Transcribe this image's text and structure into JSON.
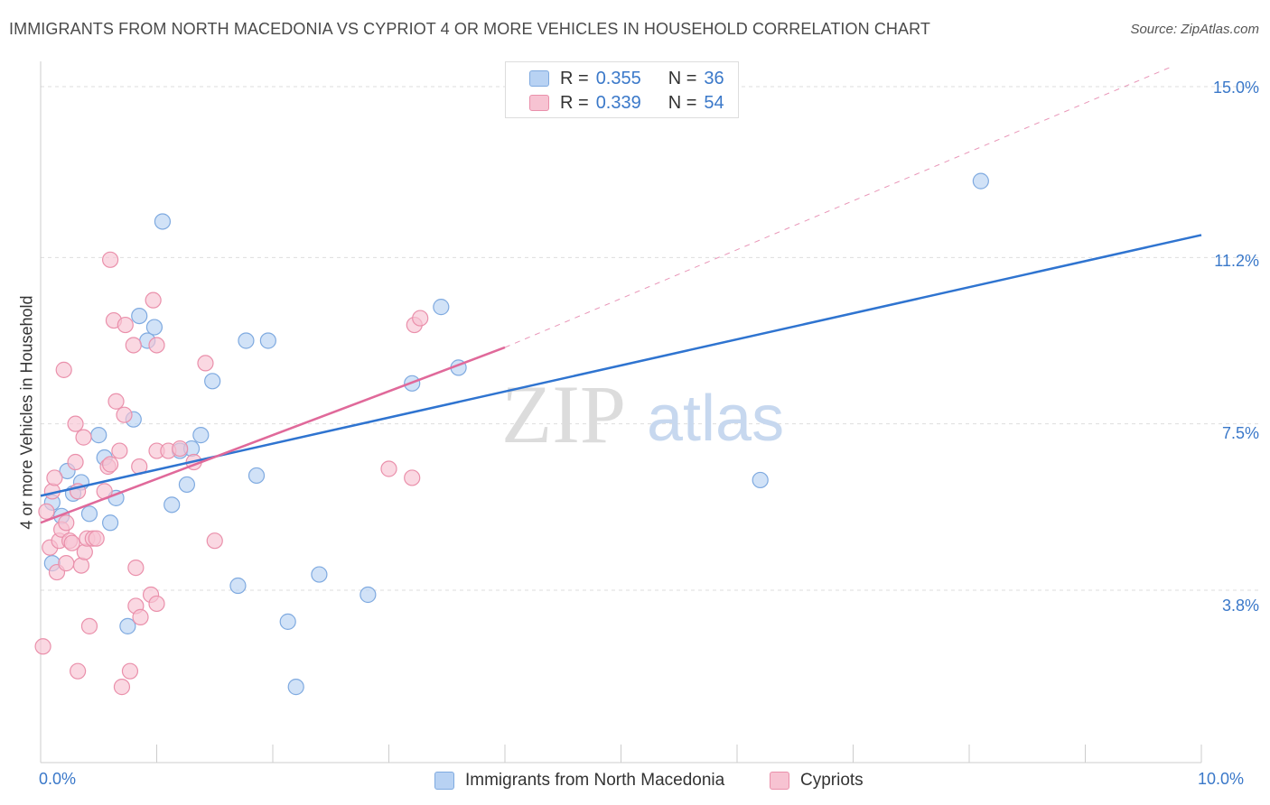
{
  "title": "IMMIGRANTS FROM NORTH MACEDONIA VS CYPRIOT 4 OR MORE VEHICLES IN HOUSEHOLD CORRELATION CHART",
  "source": "Source: ZipAtlas.com",
  "watermark": {
    "zip": "ZIP",
    "atlas": "atlas"
  },
  "colors": {
    "blue_fill": "#b8d2f3",
    "blue_stroke": "#7faae0",
    "blue_line": "#2f74d0",
    "pink_fill": "#f7c3d2",
    "pink_stroke": "#ea90ab",
    "pink_line": "#e0699a",
    "tick_text": "#3a78c9",
    "grid": "#dddddd"
  },
  "legend": {
    "rows": [
      {
        "r_label": "R =",
        "r_value": "0.355",
        "n_label": "N =",
        "n_value": "36",
        "color": "#b8d2f3"
      },
      {
        "r_label": "R =",
        "r_value": "0.339",
        "n_label": "N =",
        "n_value": "54",
        "color": "#f7c3d2"
      }
    ]
  },
  "chart_data": {
    "type": "scatter",
    "title": "IMMIGRANTS FROM NORTH MACEDONIA VS CYPRIOT 4 OR MORE VEHICLES IN HOUSEHOLD CORRELATION CHART",
    "xlabel": "",
    "ylabel": "4 or more Vehicles in Household",
    "xlim": [
      0,
      10
    ],
    "ylim": [
      0,
      15.5
    ],
    "x_tick_labels": [
      "0.0%",
      "10.0%"
    ],
    "y_ticks": [
      3.8,
      7.5,
      11.2,
      15.0
    ],
    "y_tick_labels": [
      "3.8%",
      "7.5%",
      "11.2%",
      "15.0%"
    ],
    "grid": true,
    "legend_position": "top-center",
    "series": [
      {
        "name": "Immigrants from North Macedonia",
        "color": "#b8d2f3",
        "points": [
          [
            0.1,
            4.4
          ],
          [
            0.1,
            5.75
          ],
          [
            0.18,
            5.45
          ],
          [
            0.23,
            6.45
          ],
          [
            0.28,
            5.95
          ],
          [
            0.35,
            6.2
          ],
          [
            0.42,
            5.5
          ],
          [
            0.5,
            7.25
          ],
          [
            0.55,
            6.75
          ],
          [
            0.6,
            5.3
          ],
          [
            0.65,
            5.85
          ],
          [
            0.75,
            3.0
          ],
          [
            0.8,
            7.6
          ],
          [
            0.85,
            9.9
          ],
          [
            0.92,
            9.35
          ],
          [
            0.98,
            9.65
          ],
          [
            1.05,
            12.0
          ],
          [
            1.13,
            5.7
          ],
          [
            1.2,
            6.9
          ],
          [
            1.26,
            6.15
          ],
          [
            1.3,
            6.95
          ],
          [
            1.38,
            7.25
          ],
          [
            1.48,
            8.45
          ],
          [
            1.7,
            3.9
          ],
          [
            1.77,
            9.35
          ],
          [
            1.86,
            6.35
          ],
          [
            1.96,
            9.35
          ],
          [
            2.13,
            3.1
          ],
          [
            2.2,
            1.65
          ],
          [
            2.4,
            4.15
          ],
          [
            2.82,
            3.7
          ],
          [
            3.2,
            8.4
          ],
          [
            3.45,
            10.1
          ],
          [
            3.6,
            8.75
          ],
          [
            6.2,
            6.25
          ],
          [
            8.1,
            12.9
          ]
        ]
      },
      {
        "name": "Cypriots",
        "color": "#f7c3d2",
        "points": [
          [
            0.02,
            2.55
          ],
          [
            0.05,
            5.55
          ],
          [
            0.08,
            4.75
          ],
          [
            0.1,
            6.0
          ],
          [
            0.12,
            6.3
          ],
          [
            0.14,
            4.2
          ],
          [
            0.16,
            4.9
          ],
          [
            0.18,
            5.15
          ],
          [
            0.2,
            8.7
          ],
          [
            0.22,
            5.3
          ],
          [
            0.22,
            4.4
          ],
          [
            0.25,
            4.9
          ],
          [
            0.27,
            4.85
          ],
          [
            0.3,
            7.5
          ],
          [
            0.3,
            6.65
          ],
          [
            0.32,
            2.0
          ],
          [
            0.32,
            6.0
          ],
          [
            0.35,
            4.35
          ],
          [
            0.37,
            7.2
          ],
          [
            0.38,
            4.65
          ],
          [
            0.4,
            4.95
          ],
          [
            0.42,
            3.0
          ],
          [
            0.45,
            4.95
          ],
          [
            0.48,
            4.95
          ],
          [
            0.55,
            6.0
          ],
          [
            0.58,
            6.55
          ],
          [
            0.6,
            6.6
          ],
          [
            0.6,
            11.15
          ],
          [
            0.63,
            9.8
          ],
          [
            0.65,
            8.0
          ],
          [
            0.68,
            6.9
          ],
          [
            0.7,
            1.65
          ],
          [
            0.72,
            7.7
          ],
          [
            0.73,
            9.7
          ],
          [
            0.77,
            2.0
          ],
          [
            0.8,
            9.25
          ],
          [
            0.82,
            3.45
          ],
          [
            0.82,
            4.3
          ],
          [
            0.85,
            6.55
          ],
          [
            0.86,
            3.2
          ],
          [
            0.95,
            3.7
          ],
          [
            0.97,
            10.25
          ],
          [
            1.0,
            9.25
          ],
          [
            1.0,
            3.5
          ],
          [
            1.0,
            6.9
          ],
          [
            1.1,
            6.9
          ],
          [
            1.2,
            6.95
          ],
          [
            1.32,
            6.65
          ],
          [
            1.42,
            8.85
          ],
          [
            1.5,
            4.9
          ],
          [
            3.0,
            6.5
          ],
          [
            3.2,
            6.3
          ],
          [
            3.22,
            9.7
          ],
          [
            3.27,
            9.85
          ]
        ]
      }
    ],
    "trendlines": [
      {
        "series": "Immigrants from North Macedonia",
        "style": "solid",
        "from": [
          0.0,
          5.9
        ],
        "to": [
          10.0,
          11.7
        ]
      },
      {
        "series": "Cypriots",
        "style": "solid",
        "from": [
          0.0,
          5.3
        ],
        "to": [
          4.0,
          9.2
        ]
      },
      {
        "series": "Cypriots",
        "style": "dashed",
        "from": [
          4.0,
          9.2
        ],
        "to": [
          9.75,
          15.45
        ]
      }
    ],
    "bottom_legend": [
      "Immigrants from North Macedonia",
      "Cypriots"
    ]
  }
}
